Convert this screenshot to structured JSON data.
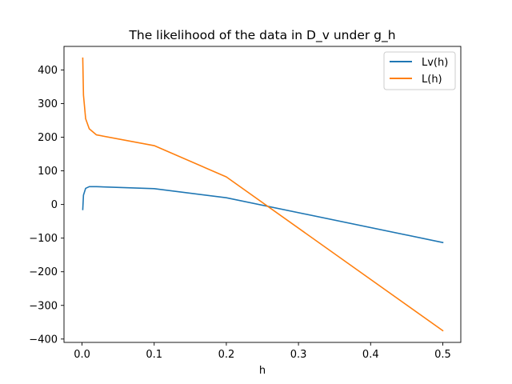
{
  "chart_data": {
    "type": "line",
    "title": "The likelihood of the data in D_v under g_h",
    "xlabel": "h",
    "ylabel": "",
    "xlim": [
      -0.025,
      0.525
    ],
    "ylim": [
      -410,
      470
    ],
    "xticks": [
      0.0,
      0.1,
      0.2,
      0.3,
      0.4,
      0.5
    ],
    "xtick_labels": [
      "0.0",
      "0.1",
      "0.2",
      "0.3",
      "0.4",
      "0.5"
    ],
    "yticks": [
      -400,
      -300,
      -200,
      -100,
      0,
      100,
      200,
      300,
      400
    ],
    "ytick_labels": [
      "−400",
      "−300",
      "−200",
      "−100",
      "0",
      "100",
      "200",
      "300",
      "400"
    ],
    "grid": false,
    "legend_position": "top-right",
    "series": [
      {
        "name": "Lv(h)",
        "color": "#1f77b4",
        "x": [
          0.001,
          0.002,
          0.005,
          0.01,
          0.02,
          0.1,
          0.2,
          0.5
        ],
        "y": [
          -15,
          28,
          48,
          53,
          53,
          47,
          20,
          -113
        ]
      },
      {
        "name": "L(h)",
        "color": "#ff7f0e",
        "x": [
          0.001,
          0.002,
          0.005,
          0.01,
          0.02,
          0.1,
          0.2,
          0.5
        ],
        "y": [
          435,
          325,
          255,
          225,
          207,
          175,
          82,
          -375
        ]
      }
    ]
  }
}
